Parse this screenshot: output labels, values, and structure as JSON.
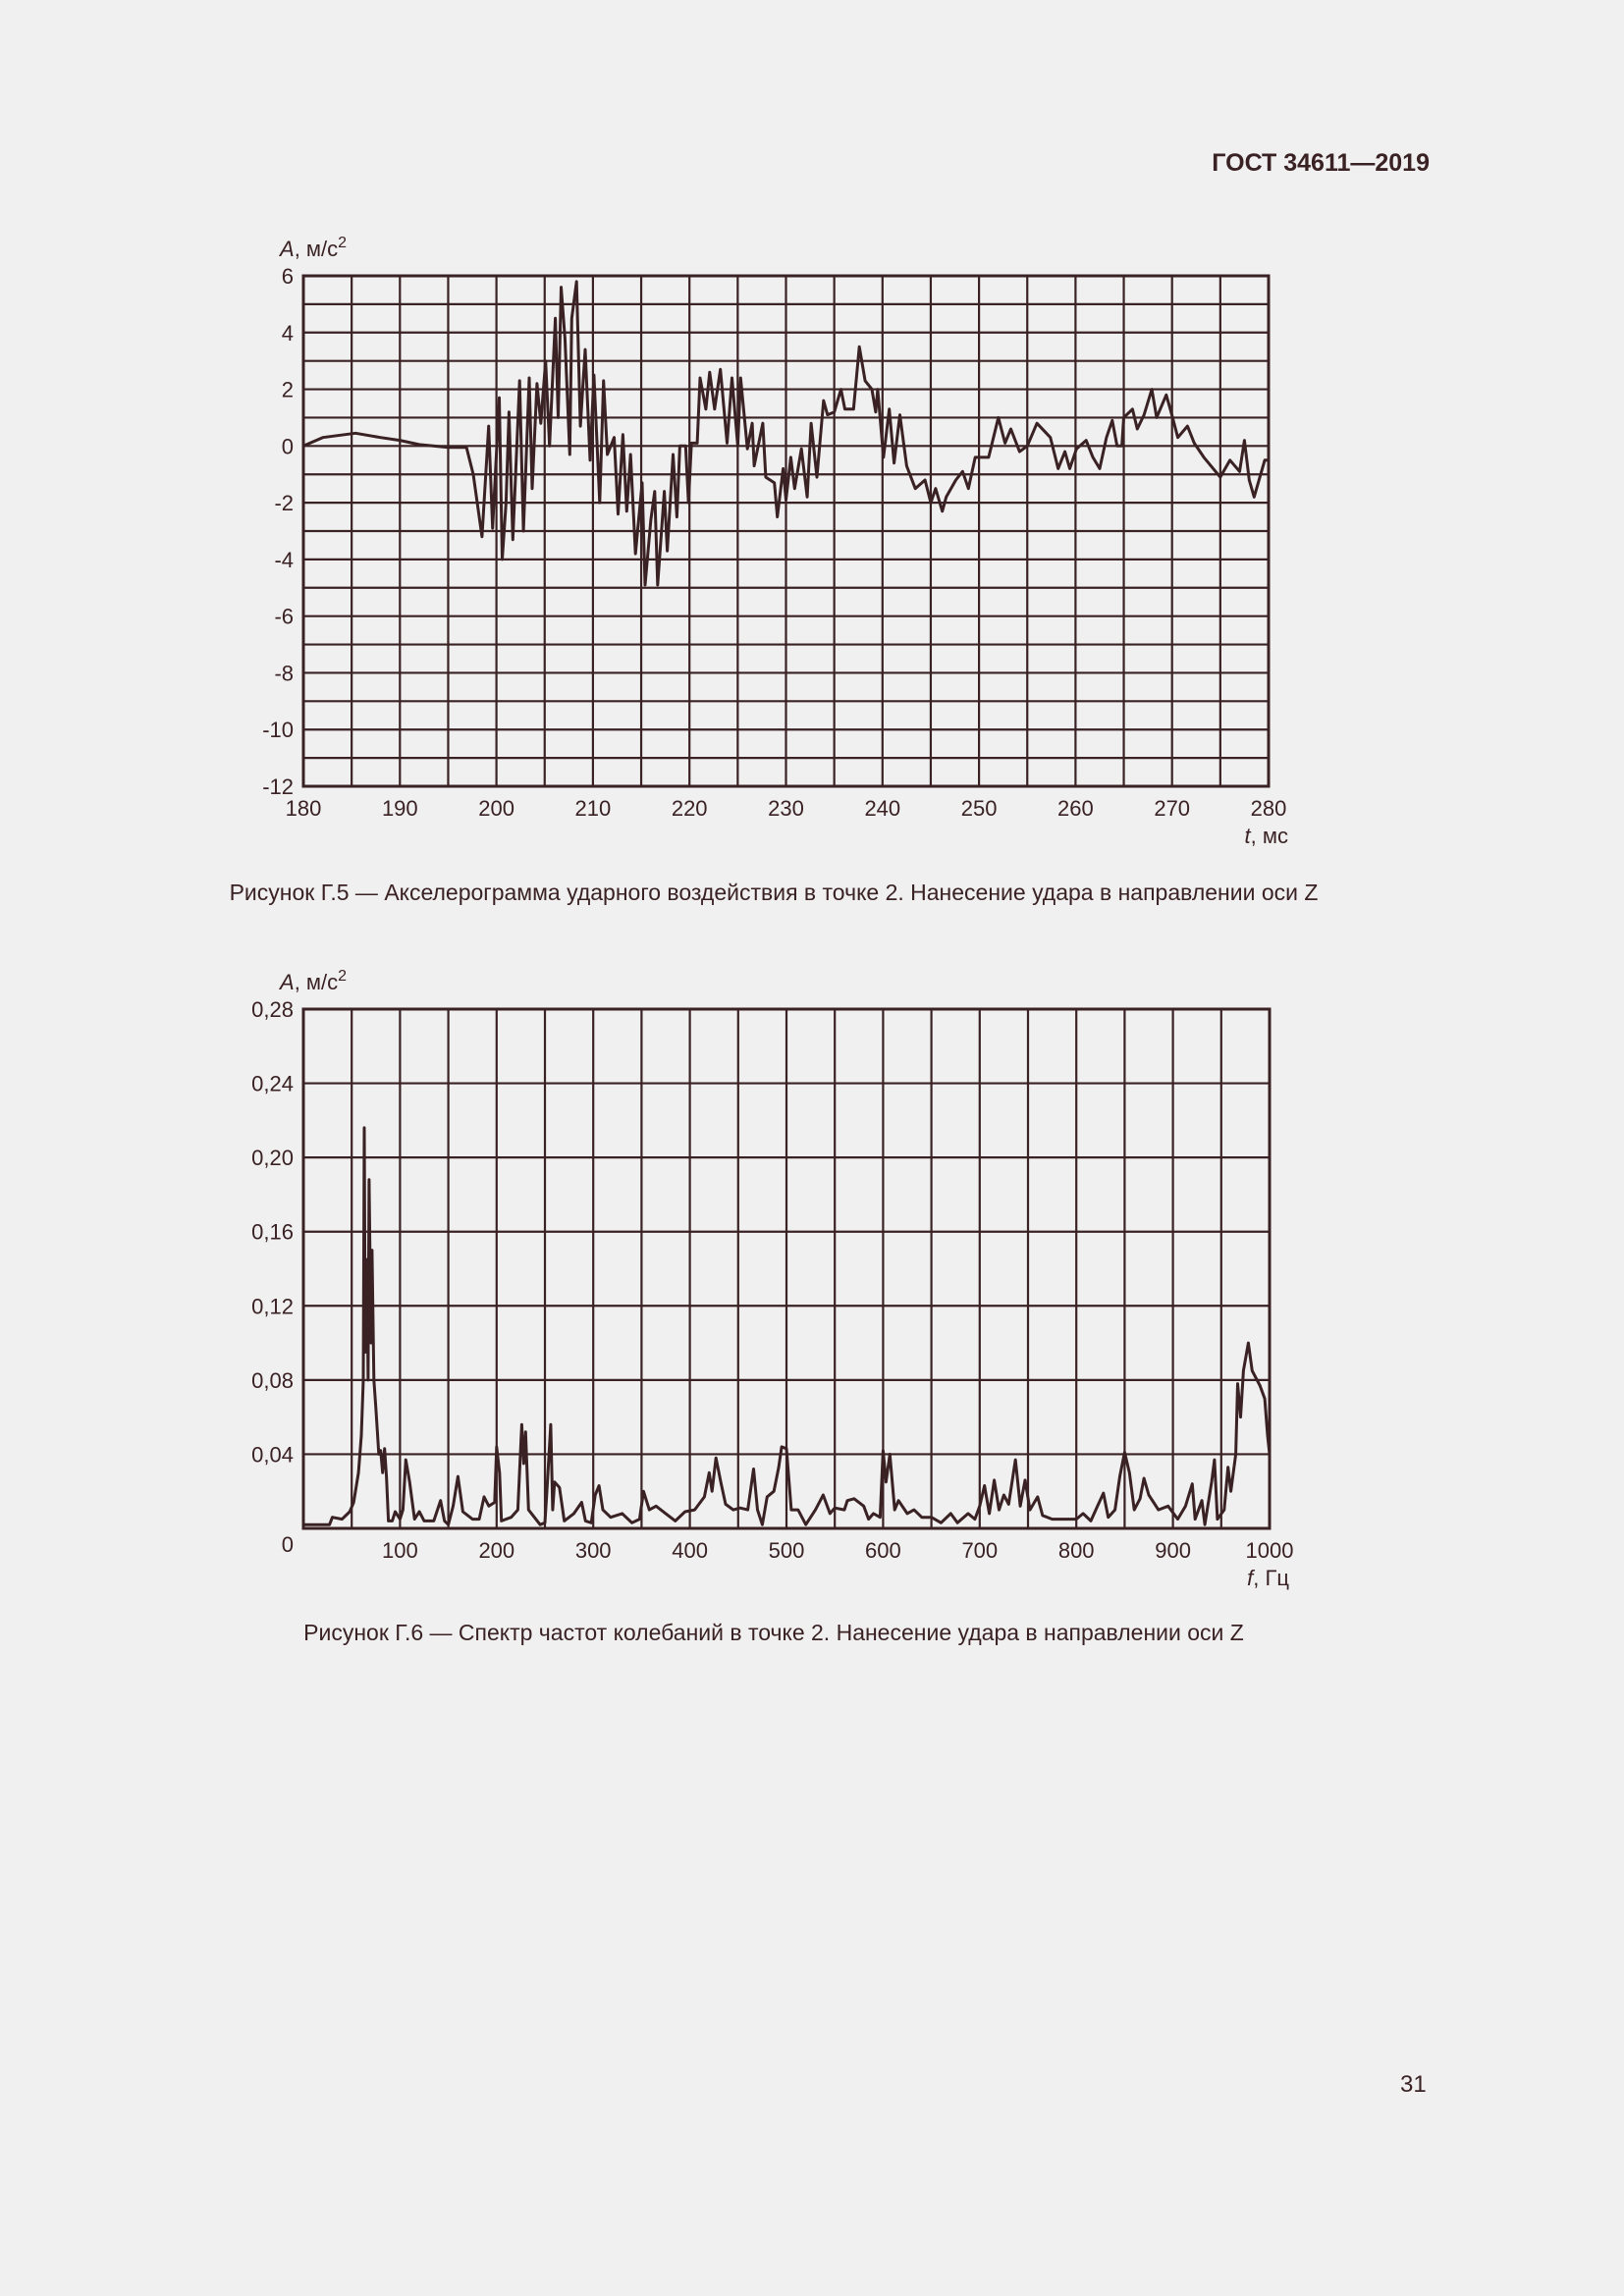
{
  "header": {
    "doc_id": "ГОСТ 34611—2019"
  },
  "page_number": "31",
  "colors": {
    "ink": "#3a2224",
    "background": "#f0f0f0"
  },
  "figures": [
    {
      "caption": "Рисунок Г.5 — Акселерограмма ударного воздействия в точке 2. Нанесение удара в направлении оси Z"
    },
    {
      "caption": "Рисунок Г.6 — Спектр частот колебаний в точке 2. Нанесение удара в направлении оси Z"
    }
  ],
  "chart_data": [
    {
      "type": "line",
      "title": "",
      "ylabel": {
        "symbol": "A",
        "unit": ", м/с",
        "exponent": "2"
      },
      "xlabel": {
        "symbol": "t",
        "unit": ", мс"
      },
      "xlim": [
        180,
        280
      ],
      "ylim": [
        -12,
        6
      ],
      "grid": true,
      "x_grid_step": 5,
      "y_grid_step": 1,
      "xticks": [
        180,
        190,
        200,
        210,
        220,
        230,
        240,
        250,
        260,
        270,
        280
      ],
      "xtick_labels": [
        "180",
        "190",
        "200",
        "210",
        "220",
        "230",
        "240",
        "250",
        "260",
        "270",
        "280"
      ],
      "yticks": [
        6,
        4,
        2,
        0,
        -2,
        -4,
        -6,
        -8,
        -10,
        -12
      ],
      "ytick_labels": [
        "6",
        "4",
        "2",
        "0",
        "-2",
        "-4",
        "-6",
        "-8",
        "-10",
        "-12"
      ],
      "x": [
        180,
        182,
        185.4,
        188,
        190,
        192,
        195,
        196.9,
        197.6,
        198.5,
        199.2,
        199.6,
        200.3,
        200.6,
        201,
        201.3,
        201.7,
        202.4,
        202.8,
        203.4,
        203.7,
        204.2,
        204.6,
        205.1,
        205.5,
        206.1,
        206.4,
        206.7,
        207.1,
        207.6,
        207.8,
        208.3,
        208.7,
        209.2,
        209.7,
        210.1,
        210.7,
        211.1,
        211.5,
        212.2,
        212.6,
        213.1,
        213.5,
        213.9,
        214.4,
        215.1,
        215.4,
        216,
        216.4,
        216.7,
        217.4,
        217.7,
        218.3,
        218.7,
        219,
        219.6,
        219.9,
        220.2,
        220.8,
        221.1,
        221.7,
        222.1,
        222.6,
        223.2,
        223.9,
        224.4,
        225,
        225.3,
        226,
        226.5,
        226.7,
        227.6,
        227.9,
        228.8,
        229.1,
        229.7,
        230,
        230.5,
        230.9,
        231.6,
        232.2,
        232.6,
        233.2,
        233.9,
        234.3,
        235,
        235.7,
        236.1,
        237,
        237.6,
        238.2,
        238.9,
        239.3,
        239.5,
        240.1,
        240.7,
        241.2,
        241.8,
        242.5,
        243.4,
        244.4,
        245,
        245.5,
        246.2,
        246.6,
        247.6,
        248.3,
        248.9,
        249.6,
        251,
        252,
        252.7,
        253.3,
        254.2,
        255,
        256,
        257.4,
        258.2,
        258.9,
        259.4,
        260.1,
        261.1,
        261.8,
        262.5,
        263.2,
        263.8,
        264.3,
        264.8,
        265,
        265.9,
        266.4,
        267.1,
        267.9,
        268.4,
        269.4,
        269.9,
        270.6,
        271.6,
        272.3,
        273.3,
        275,
        276,
        277,
        277.5,
        278,
        278.5,
        279.6,
        280
      ],
      "y": [
        0,
        0.3,
        0.45,
        0.3,
        0.2,
        0.05,
        -0.05,
        -0.05,
        -1,
        -3.2,
        0.7,
        -2.9,
        1.7,
        -4,
        -2,
        1.2,
        -3.3,
        2.3,
        -3,
        2.4,
        -1.5,
        2.2,
        0.8,
        3,
        0,
        4.5,
        1,
        5.6,
        3.8,
        -0.3,
        4.5,
        5.8,
        0.7,
        3.4,
        -0.5,
        2.5,
        -2,
        2.3,
        -0.3,
        0.3,
        -2.4,
        0.4,
        -2.3,
        -0.3,
        -3.8,
        -1.3,
        -4.9,
        -2.6,
        -1.6,
        -4.9,
        -1.6,
        -3.7,
        -0.3,
        -2.5,
        0,
        0,
        -2,
        0.1,
        0.1,
        2.4,
        1.3,
        2.6,
        1.3,
        2.7,
        0.1,
        2.4,
        0,
        2.4,
        -0.1,
        0.8,
        -0.7,
        0.8,
        -1.1,
        -1.3,
        -2.5,
        -0.8,
        -1.9,
        -0.4,
        -1.5,
        -0.1,
        -1.8,
        0.8,
        -1.1,
        1.6,
        1.1,
        1.2,
        2,
        1.3,
        1.3,
        3.5,
        2.3,
        2,
        1.2,
        2,
        -0.4,
        1.3,
        -0.6,
        1.1,
        -0.7,
        -1.5,
        -1.2,
        -2,
        -1.5,
        -2.3,
        -1.8,
        -1.2,
        -0.9,
        -1.5,
        -0.4,
        -0.4,
        1,
        0.1,
        0.6,
        -0.2,
        0,
        0.8,
        0.3,
        -0.8,
        -0.2,
        -0.8,
        -0.1,
        0.2,
        -0.4,
        -0.8,
        0.3,
        0.9,
        0,
        0,
        1,
        1.3,
        0.6,
        1.1,
        2,
        1,
        1.8,
        1.2,
        0.3,
        0.7,
        0.1,
        -0.4,
        -1.1,
        -0.5,
        -0.9,
        0.2,
        -1.2,
        -1.8,
        -0.5,
        -0.5
      ]
    },
    {
      "type": "line",
      "title": "",
      "ylabel": {
        "symbol": "A",
        "unit": ", м/с",
        "exponent": "2"
      },
      "xlabel": {
        "symbol": "f",
        "unit": ", Гц"
      },
      "xlim": [
        0,
        1000
      ],
      "ylim": [
        0,
        0.28
      ],
      "grid": true,
      "x_grid_step": 50,
      "y_grid_step": 0.04,
      "xticks": [
        100,
        200,
        300,
        400,
        500,
        600,
        700,
        800,
        900,
        1000
      ],
      "xtick_labels": [
        "100",
        "200",
        "300",
        "400",
        "500",
        "600",
        "700",
        "800",
        "900",
        "1000"
      ],
      "yticks": [
        0.28,
        0.24,
        0.2,
        0.16,
        0.12,
        0.08,
        0.04
      ],
      "ytick_labels": [
        "0,28",
        "0,24",
        "0,20",
        "0,16",
        "0,12",
        "0,08",
        "0,04"
      ],
      "origin_label": "0",
      "x": [
        0,
        27,
        30,
        40,
        48,
        52,
        57,
        60,
        62,
        63,
        64,
        66,
        67,
        68,
        70,
        71,
        73,
        75,
        78,
        80,
        82,
        84,
        86,
        88,
        92,
        95,
        100,
        103,
        106,
        110,
        115,
        120,
        125,
        135,
        142,
        146,
        150,
        155,
        160,
        165,
        175,
        182,
        187,
        192,
        198,
        200,
        203,
        205,
        215,
        222,
        226,
        228,
        230,
        233,
        245,
        250,
        252,
        256,
        258,
        260,
        265,
        270,
        280,
        288,
        292,
        298,
        302,
        306,
        310,
        318,
        330,
        340,
        348,
        352,
        358,
        365,
        375,
        385,
        395,
        405,
        415,
        420,
        423,
        427,
        432,
        437,
        445,
        452,
        460,
        466,
        470,
        475,
        480,
        487,
        492,
        495,
        500,
        505,
        512,
        520,
        530,
        538,
        545,
        550,
        560,
        563,
        570,
        580,
        585,
        590,
        597,
        600,
        603,
        607,
        612,
        616,
        625,
        632,
        640,
        650,
        660,
        670,
        677,
        688,
        695,
        700,
        705,
        710,
        715,
        720,
        725,
        730,
        737,
        742,
        747,
        752,
        760,
        765,
        775,
        790,
        800,
        807,
        815,
        822,
        828,
        833,
        840,
        845,
        850,
        855,
        860,
        866,
        870,
        875,
        880,
        885,
        895,
        905,
        913,
        920,
        923,
        930,
        933,
        940,
        943,
        946,
        953,
        957,
        960,
        965,
        967,
        970,
        973,
        978,
        982,
        990,
        995,
        998,
        1000
      ],
      "y": [
        0.002,
        0.002,
        0.006,
        0.005,
        0.009,
        0.014,
        0.03,
        0.05,
        0.08,
        0.216,
        0.095,
        0.145,
        0.08,
        0.188,
        0.1,
        0.15,
        0.08,
        0.065,
        0.04,
        0.042,
        0.03,
        0.043,
        0.028,
        0.004,
        0.004,
        0.009,
        0.005,
        0.01,
        0.037,
        0.025,
        0.005,
        0.009,
        0.004,
        0.004,
        0.015,
        0.004,
        0.002,
        0.012,
        0.028,
        0.009,
        0.005,
        0.005,
        0.017,
        0.012,
        0.014,
        0.044,
        0.03,
        0.004,
        0.006,
        0.01,
        0.056,
        0.035,
        0.052,
        0.01,
        0.002,
        0.003,
        0.02,
        0.056,
        0.01,
        0.025,
        0.022,
        0.004,
        0.008,
        0.014,
        0.004,
        0.003,
        0.018,
        0.023,
        0.01,
        0.006,
        0.008,
        0.003,
        0.005,
        0.02,
        0.01,
        0.012,
        0.008,
        0.004,
        0.009,
        0.01,
        0.017,
        0.03,
        0.02,
        0.038,
        0.025,
        0.013,
        0.01,
        0.011,
        0.01,
        0.032,
        0.01,
        0.002,
        0.017,
        0.02,
        0.033,
        0.044,
        0.043,
        0.01,
        0.01,
        0.002,
        0.01,
        0.018,
        0.008,
        0.011,
        0.01,
        0.015,
        0.016,
        0.012,
        0.005,
        0.008,
        0.006,
        0.042,
        0.025,
        0.04,
        0.01,
        0.015,
        0.008,
        0.01,
        0.006,
        0.006,
        0.003,
        0.008,
        0.003,
        0.008,
        0.005,
        0.012,
        0.023,
        0.008,
        0.026,
        0.01,
        0.018,
        0.013,
        0.037,
        0.012,
        0.026,
        0.01,
        0.017,
        0.007,
        0.005,
        0.005,
        0.005,
        0.008,
        0.004,
        0.012,
        0.019,
        0.006,
        0.01,
        0.028,
        0.041,
        0.03,
        0.01,
        0.016,
        0.027,
        0.018,
        0.014,
        0.01,
        0.012,
        0.005,
        0.012,
        0.024,
        0.005,
        0.015,
        0.002,
        0.025,
        0.037,
        0.005,
        0.01,
        0.033,
        0.02,
        0.04,
        0.078,
        0.06,
        0.085,
        0.1,
        0.085,
        0.077,
        0.07,
        0.05,
        0.04
      ]
    }
  ]
}
